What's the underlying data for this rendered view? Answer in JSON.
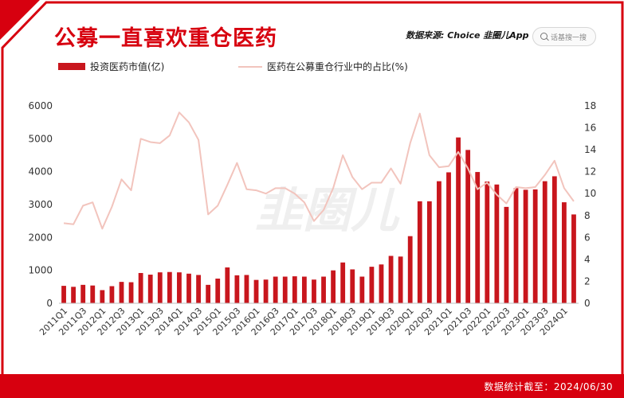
{
  "header": {
    "title": "公募一直喜欢重仓医药",
    "source_label": "数据来源: Choice",
    "brand": "韭圈儿App",
    "search_placeholder": "话基搜一搜"
  },
  "footer": {
    "text": "数据统计截至：2024/06/30"
  },
  "watermark": "韭圈儿",
  "colors": {
    "bar": "#c8161d",
    "line": "#f2c4bd",
    "accent": "#d7000f"
  },
  "chart_data": {
    "type": "bar",
    "title": "公募一直喜欢重仓医药",
    "x_tick_labels": [
      "2011Q1",
      "2011Q3",
      "2012Q1",
      "2012Q3",
      "2013Q1",
      "2013Q3",
      "2014Q1",
      "2014Q3",
      "2015Q1",
      "2015Q3",
      "2016Q1",
      "2016Q3",
      "2017Q1",
      "2017Q3",
      "2018Q1",
      "2018Q3",
      "2019Q1",
      "2019Q3",
      "2020Q1",
      "2020Q3",
      "2021Q1",
      "2021Q3",
      "2022Q1",
      "2022Q3",
      "2023Q1",
      "2023Q3",
      "2024Q1"
    ],
    "categories": [
      "2011Q1",
      "2011Q2",
      "2011Q3",
      "2011Q4",
      "2012Q1",
      "2012Q2",
      "2012Q3",
      "2012Q4",
      "2013Q1",
      "2013Q2",
      "2013Q3",
      "2013Q4",
      "2014Q1",
      "2014Q2",
      "2014Q3",
      "2014Q4",
      "2015Q1",
      "2015Q2",
      "2015Q3",
      "2015Q4",
      "2016Q1",
      "2016Q2",
      "2016Q3",
      "2016Q4",
      "2017Q1",
      "2017Q2",
      "2017Q3",
      "2017Q4",
      "2018Q1",
      "2018Q2",
      "2018Q3",
      "2018Q4",
      "2019Q1",
      "2019Q2",
      "2019Q3",
      "2019Q4",
      "2020Q1",
      "2020Q2",
      "2020Q3",
      "2020Q4",
      "2021Q1",
      "2021Q2",
      "2021Q3",
      "2021Q4",
      "2022Q1",
      "2022Q2",
      "2022Q3",
      "2022Q4",
      "2023Q1",
      "2023Q2",
      "2023Q3",
      "2023Q4",
      "2024Q1",
      "2024Q2"
    ],
    "series": [
      {
        "name": "投资医药市值(亿)",
        "type": "bar",
        "axis": "left",
        "values": [
          530,
          500,
          560,
          540,
          400,
          520,
          650,
          640,
          920,
          870,
          940,
          950,
          940,
          900,
          860,
          560,
          750,
          1090,
          850,
          860,
          710,
          720,
          810,
          810,
          820,
          810,
          720,
          810,
          1000,
          1240,
          1030,
          810,
          1110,
          1180,
          1440,
          1420,
          2040,
          3100,
          3100,
          3710,
          3980,
          5040,
          4660,
          3990,
          3700,
          3610,
          2930,
          3500,
          3450,
          3460,
          3710,
          3860,
          3070,
          2700
        ]
      },
      {
        "name": "医药在公募重仓行业中的占比(%)",
        "type": "line",
        "axis": "right",
        "values": [
          7.3,
          7.2,
          8.9,
          9.2,
          6.8,
          8.8,
          11.3,
          10.3,
          15.0,
          14.7,
          14.6,
          15.3,
          17.4,
          16.5,
          14.9,
          8.1,
          8.9,
          10.8,
          12.8,
          10.4,
          10.3,
          10.0,
          10.5,
          10.5,
          10.0,
          9.2,
          7.5,
          8.5,
          10.5,
          13.5,
          11.5,
          10.4,
          11.0,
          11.0,
          12.3,
          10.9,
          14.6,
          17.3,
          13.5,
          12.4,
          12.5,
          13.8,
          12.3,
          10.4,
          11.0,
          9.9,
          9.1,
          10.6,
          10.5,
          10.6,
          11.7,
          13.0,
          10.5,
          9.3
        ]
      }
    ],
    "yaxis_left": {
      "min": 0,
      "max": 6000,
      "step": 1000,
      "ticks": [
        "0",
        "1000",
        "2000",
        "3000",
        "4000",
        "5000",
        "6000"
      ]
    },
    "yaxis_right": {
      "min": 0,
      "max": 18,
      "step": 2,
      "ticks": [
        "0",
        "2",
        "4",
        "6",
        "8",
        "10",
        "12",
        "14",
        "16",
        "18"
      ]
    },
    "grid": false,
    "legend_position": "top-left"
  }
}
